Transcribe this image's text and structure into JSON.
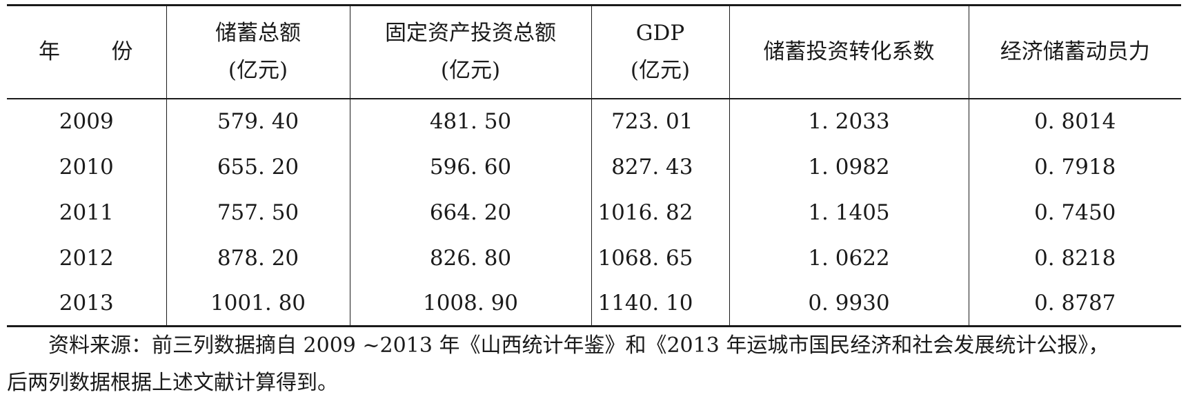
{
  "table": {
    "headers": {
      "year": [
        "年",
        "份"
      ],
      "savings": [
        "储蓄总额",
        "(亿元)"
      ],
      "investment": [
        "固定资产投资总额",
        "(亿元)"
      ],
      "gdp": [
        "GDP",
        "(亿元)"
      ],
      "conversion": "储蓄投资转化系数",
      "mobilization": "经济储蓄动员力"
    },
    "rows": [
      {
        "year": "2009",
        "savings": "579. 40",
        "investment": "481. 50",
        "gdp": "723. 01",
        "conversion": "1. 2033",
        "mobilization": "0. 8014"
      },
      {
        "year": "2010",
        "savings": "655. 20",
        "investment": "596. 60",
        "gdp": "827. 43",
        "conversion": "1. 0982",
        "mobilization": "0. 7918"
      },
      {
        "year": "2011",
        "savings": "757. 50",
        "investment": "664. 20",
        "gdp": "1016. 82",
        "conversion": "1. 1405",
        "mobilization": "0. 7450"
      },
      {
        "year": "2012",
        "savings": "878. 20",
        "investment": "826. 80",
        "gdp": "1068. 65",
        "conversion": "1. 0622",
        "mobilization": "0. 8218"
      },
      {
        "year": "2013",
        "savings": "1001. 80",
        "investment": "1008. 90",
        "gdp": "1140. 10",
        "conversion": "0. 9930",
        "mobilization": "0. 8787"
      }
    ]
  },
  "note": {
    "line1": "资料来源：前三列数据摘自 2009 ~2013 年《山西统计年鉴》和《2013 年运城市国民经济和社会发展统计公报》，",
    "line2": "后两列数据根据上述文献计算得到。"
  }
}
